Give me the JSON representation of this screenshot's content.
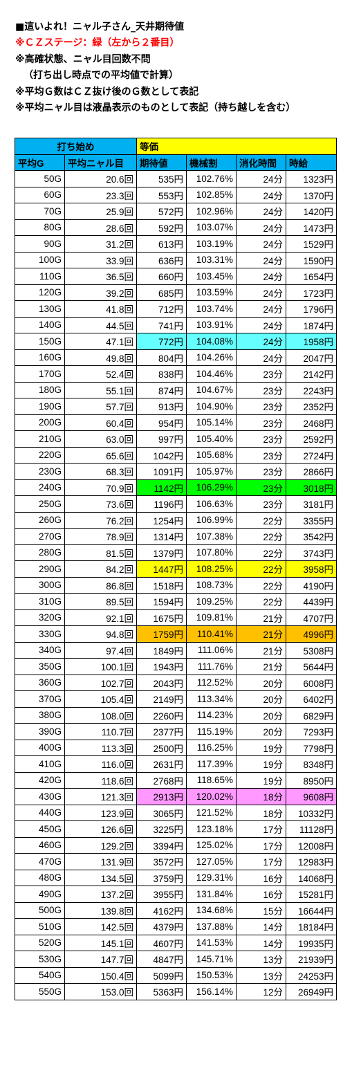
{
  "notes": [
    {
      "text": "■這いよれ！ニャル子さん_天井期待値",
      "style": "title"
    },
    {
      "text": "※ＣＺステージ：緑（左から２番目）",
      "style": "red"
    },
    {
      "text": "※高確状態、ニャル目回数不問",
      "style": "normal"
    },
    {
      "text": "（打ち出し時点での平均値で計算）",
      "style": "indent"
    },
    {
      "text": "※平均Ｇ数はＣＺ抜け後のＧ数として表記",
      "style": "normal"
    },
    {
      "text": "※平均ニャル目は液晶表示のものとして表記（持ち越しを含む）",
      "style": "normal"
    }
  ],
  "table": {
    "group_headers": {
      "start": "打ち始め",
      "exchange": "等価"
    },
    "columns": [
      "平均G",
      "平均ニャル目",
      "期待値",
      "機械割",
      "消化時間",
      "時給"
    ],
    "colors": {
      "header_blue": "#00b0f0",
      "header_yellow": "#ffff00",
      "cyan": "#66ffff",
      "green": "#00ff00",
      "yellow": "#ffff00",
      "orange": "#ffc000",
      "pink": "#ff99ff"
    },
    "rows": [
      {
        "g": "50G",
        "nyaru": "20.6回",
        "ev": "535円",
        "rate": "102.76%",
        "time": "24分",
        "wage": "1323円"
      },
      {
        "g": "60G",
        "nyaru": "23.3回",
        "ev": "553円",
        "rate": "102.85%",
        "time": "24分",
        "wage": "1370円"
      },
      {
        "g": "70G",
        "nyaru": "25.9回",
        "ev": "572円",
        "rate": "102.96%",
        "time": "24分",
        "wage": "1420円"
      },
      {
        "g": "80G",
        "nyaru": "28.6回",
        "ev": "592円",
        "rate": "103.07%",
        "time": "24分",
        "wage": "1473円"
      },
      {
        "g": "90G",
        "nyaru": "31.2回",
        "ev": "613円",
        "rate": "103.19%",
        "time": "24分",
        "wage": "1529円"
      },
      {
        "g": "100G",
        "nyaru": "33.9回",
        "ev": "636円",
        "rate": "103.31%",
        "time": "24分",
        "wage": "1590円"
      },
      {
        "g": "110G",
        "nyaru": "36.5回",
        "ev": "660円",
        "rate": "103.45%",
        "time": "24分",
        "wage": "1654円"
      },
      {
        "g": "120G",
        "nyaru": "39.2回",
        "ev": "685円",
        "rate": "103.59%",
        "time": "24分",
        "wage": "1723円"
      },
      {
        "g": "130G",
        "nyaru": "41.8回",
        "ev": "712円",
        "rate": "103.74%",
        "time": "24分",
        "wage": "1796円"
      },
      {
        "g": "140G",
        "nyaru": "44.5回",
        "ev": "741円",
        "rate": "103.91%",
        "time": "24分",
        "wage": "1874円"
      },
      {
        "g": "150G",
        "nyaru": "47.1回",
        "ev": "772円",
        "rate": "104.08%",
        "time": "24分",
        "wage": "1958円",
        "hl": "cyan"
      },
      {
        "g": "160G",
        "nyaru": "49.8回",
        "ev": "804円",
        "rate": "104.26%",
        "time": "24分",
        "wage": "2047円"
      },
      {
        "g": "170G",
        "nyaru": "52.4回",
        "ev": "838円",
        "rate": "104.46%",
        "time": "23分",
        "wage": "2142円"
      },
      {
        "g": "180G",
        "nyaru": "55.1回",
        "ev": "874円",
        "rate": "104.67%",
        "time": "23分",
        "wage": "2243円"
      },
      {
        "g": "190G",
        "nyaru": "57.7回",
        "ev": "913円",
        "rate": "104.90%",
        "time": "23分",
        "wage": "2352円"
      },
      {
        "g": "200G",
        "nyaru": "60.4回",
        "ev": "954円",
        "rate": "105.14%",
        "time": "23分",
        "wage": "2468円"
      },
      {
        "g": "210G",
        "nyaru": "63.0回",
        "ev": "997円",
        "rate": "105.40%",
        "time": "23分",
        "wage": "2592円"
      },
      {
        "g": "220G",
        "nyaru": "65.6回",
        "ev": "1042円",
        "rate": "105.68%",
        "time": "23分",
        "wage": "2724円"
      },
      {
        "g": "230G",
        "nyaru": "68.3回",
        "ev": "1091円",
        "rate": "105.97%",
        "time": "23分",
        "wage": "2866円"
      },
      {
        "g": "240G",
        "nyaru": "70.9回",
        "ev": "1142円",
        "rate": "106.29%",
        "time": "23分",
        "wage": "3018円",
        "hl": "green"
      },
      {
        "g": "250G",
        "nyaru": "73.6回",
        "ev": "1196円",
        "rate": "106.63%",
        "time": "23分",
        "wage": "3181円"
      },
      {
        "g": "260G",
        "nyaru": "76.2回",
        "ev": "1254円",
        "rate": "106.99%",
        "time": "22分",
        "wage": "3355円"
      },
      {
        "g": "270G",
        "nyaru": "78.9回",
        "ev": "1314円",
        "rate": "107.38%",
        "time": "22分",
        "wage": "3542円"
      },
      {
        "g": "280G",
        "nyaru": "81.5回",
        "ev": "1379円",
        "rate": "107.80%",
        "time": "22分",
        "wage": "3743円"
      },
      {
        "g": "290G",
        "nyaru": "84.2回",
        "ev": "1447円",
        "rate": "108.25%",
        "time": "22分",
        "wage": "3958円",
        "hl": "yellow"
      },
      {
        "g": "300G",
        "nyaru": "86.8回",
        "ev": "1518円",
        "rate": "108.73%",
        "time": "22分",
        "wage": "4190円"
      },
      {
        "g": "310G",
        "nyaru": "89.5回",
        "ev": "1594円",
        "rate": "109.25%",
        "time": "22分",
        "wage": "4439円"
      },
      {
        "g": "320G",
        "nyaru": "92.1回",
        "ev": "1675円",
        "rate": "109.81%",
        "time": "21分",
        "wage": "4707円"
      },
      {
        "g": "330G",
        "nyaru": "94.8回",
        "ev": "1759円",
        "rate": "110.41%",
        "time": "21分",
        "wage": "4996円",
        "hl": "orange"
      },
      {
        "g": "340G",
        "nyaru": "97.4回",
        "ev": "1849円",
        "rate": "111.06%",
        "time": "21分",
        "wage": "5308円"
      },
      {
        "g": "350G",
        "nyaru": "100.1回",
        "ev": "1943円",
        "rate": "111.76%",
        "time": "21分",
        "wage": "5644円"
      },
      {
        "g": "360G",
        "nyaru": "102.7回",
        "ev": "2043円",
        "rate": "112.52%",
        "time": "20分",
        "wage": "6008円"
      },
      {
        "g": "370G",
        "nyaru": "105.4回",
        "ev": "2149円",
        "rate": "113.34%",
        "time": "20分",
        "wage": "6402円"
      },
      {
        "g": "380G",
        "nyaru": "108.0回",
        "ev": "2260円",
        "rate": "114.23%",
        "time": "20分",
        "wage": "6829円"
      },
      {
        "g": "390G",
        "nyaru": "110.7回",
        "ev": "2377円",
        "rate": "115.19%",
        "time": "20分",
        "wage": "7293円"
      },
      {
        "g": "400G",
        "nyaru": "113.3回",
        "ev": "2500円",
        "rate": "116.25%",
        "time": "19分",
        "wage": "7798円"
      },
      {
        "g": "410G",
        "nyaru": "116.0回",
        "ev": "2631円",
        "rate": "117.39%",
        "time": "19分",
        "wage": "8348円"
      },
      {
        "g": "420G",
        "nyaru": "118.6回",
        "ev": "2768円",
        "rate": "118.65%",
        "time": "19分",
        "wage": "8950円"
      },
      {
        "g": "430G",
        "nyaru": "121.3回",
        "ev": "2913円",
        "rate": "120.02%",
        "time": "18分",
        "wage": "9608円",
        "hl": "pink"
      },
      {
        "g": "440G",
        "nyaru": "123.9回",
        "ev": "3065円",
        "rate": "121.52%",
        "time": "18分",
        "wage": "10332円"
      },
      {
        "g": "450G",
        "nyaru": "126.6回",
        "ev": "3225円",
        "rate": "123.18%",
        "time": "17分",
        "wage": "11128円"
      },
      {
        "g": "460G",
        "nyaru": "129.2回",
        "ev": "3394円",
        "rate": "125.02%",
        "time": "17分",
        "wage": "12008円"
      },
      {
        "g": "470G",
        "nyaru": "131.9回",
        "ev": "3572円",
        "rate": "127.05%",
        "time": "17分",
        "wage": "12983円"
      },
      {
        "g": "480G",
        "nyaru": "134.5回",
        "ev": "3759円",
        "rate": "129.31%",
        "time": "16分",
        "wage": "14068円"
      },
      {
        "g": "490G",
        "nyaru": "137.2回",
        "ev": "3955円",
        "rate": "131.84%",
        "time": "16分",
        "wage": "15281円"
      },
      {
        "g": "500G",
        "nyaru": "139.8回",
        "ev": "4162円",
        "rate": "134.68%",
        "time": "15分",
        "wage": "16644円"
      },
      {
        "g": "510G",
        "nyaru": "142.5回",
        "ev": "4379円",
        "rate": "137.88%",
        "time": "14分",
        "wage": "18184円"
      },
      {
        "g": "520G",
        "nyaru": "145.1回",
        "ev": "4607円",
        "rate": "141.53%",
        "time": "14分",
        "wage": "19935円"
      },
      {
        "g": "530G",
        "nyaru": "147.7回",
        "ev": "4847円",
        "rate": "145.71%",
        "time": "13分",
        "wage": "21939円"
      },
      {
        "g": "540G",
        "nyaru": "150.4回",
        "ev": "5099円",
        "rate": "150.53%",
        "time": "13分",
        "wage": "24253円"
      },
      {
        "g": "550G",
        "nyaru": "153.0回",
        "ev": "5363円",
        "rate": "156.14%",
        "time": "12分",
        "wage": "26949円"
      }
    ]
  }
}
